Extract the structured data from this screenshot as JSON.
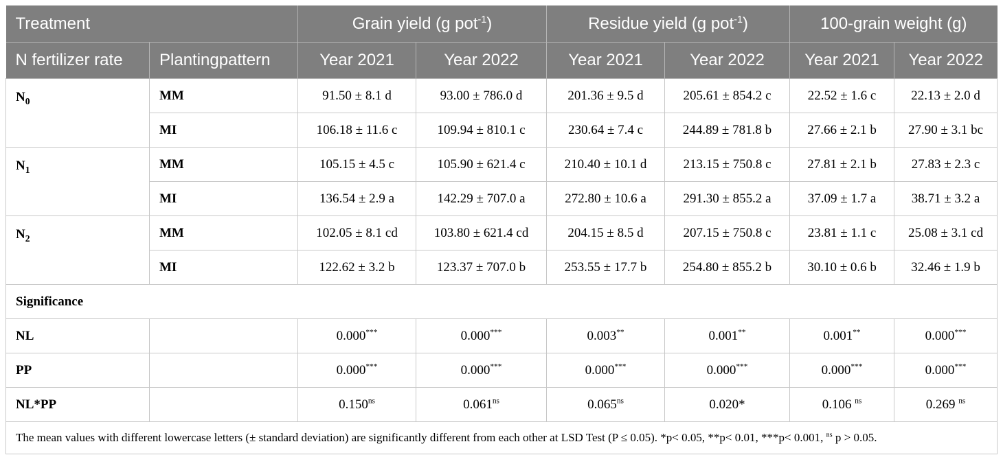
{
  "header": {
    "treatment": "Treatment",
    "grain_yield": "Grain yield (g pot",
    "grain_yield_sup": "-1",
    "grain_yield_close": ")",
    "residue_yield": "Residue yield (g pot",
    "residue_yield_sup": "-1",
    "residue_yield_close": ")",
    "grain_weight": "100-grain weight (g)",
    "n_rate": "N fertilizer rate",
    "planting": "Plantingpattern",
    "years": [
      "Year 2021",
      "Year 2022",
      "Year 2021",
      "Year 2022",
      "Year 2021",
      "Year 2022"
    ]
  },
  "groups": [
    {
      "n_label": "N",
      "n_sub": "0",
      "rows": [
        {
          "pattern": "MM",
          "values": [
            "91.50 ± 8.1 d",
            "93.00 ± 786.0 d",
            "201.36 ± 9.5 d",
            "205.61 ± 854.2 c",
            "22.52 ± 1.6 c",
            "22.13 ± 2.0 d"
          ]
        },
        {
          "pattern": "MI",
          "values": [
            "106.18 ± 11.6 c",
            "109.94 ± 810.1 c",
            "230.64 ± 7.4 c",
            "244.89 ± 781.8 b",
            "27.66 ± 2.1 b",
            "27.90 ± 3.1 bc"
          ]
        }
      ]
    },
    {
      "n_label": "N",
      "n_sub": "1",
      "rows": [
        {
          "pattern": "MM",
          "values": [
            "105.15 ± 4.5 c",
            "105.90 ± 621.4 c",
            "210.40 ± 10.1 d",
            "213.15 ± 750.8 c",
            "27.81 ± 2.1 b",
            "27.83 ± 2.3 c"
          ]
        },
        {
          "pattern": "MI",
          "values": [
            "136.54 ± 2.9 a",
            "142.29 ± 707.0 a",
            "272.80 ± 10.6 a",
            "291.30 ± 855.2 a",
            "37.09 ± 1.7 a",
            "38.71 ± 3.2 a"
          ]
        }
      ]
    },
    {
      "n_label": "N",
      "n_sub": "2",
      "rows": [
        {
          "pattern": "MM",
          "values": [
            "102.05 ± 8.1 cd",
            "103.80 ± 621.4 cd",
            "204.15 ± 8.5 d",
            "207.15 ± 750.8 c",
            "23.81 ± 1.1 c",
            "25.08 ± 3.1 cd"
          ]
        },
        {
          "pattern": "MI",
          "values": [
            "122.62 ± 3.2 b",
            "123.37 ± 707.0 b",
            "253.55 ± 17.7 b",
            "254.80 ± 855.2 b",
            "30.10 ± 0.6 b",
            "32.46 ± 1.9 b"
          ]
        }
      ]
    }
  ],
  "significance": {
    "title": "Significance",
    "rows": [
      {
        "label": "NL",
        "values": [
          [
            "0.000",
            "***"
          ],
          [
            "0.000",
            "***"
          ],
          [
            "0.003",
            "**"
          ],
          [
            "0.001",
            "**"
          ],
          [
            "0.001",
            "**"
          ],
          [
            "0.000",
            "***"
          ]
        ]
      },
      {
        "label": "PP",
        "values": [
          [
            "0.000",
            "***"
          ],
          [
            "0.000",
            "***"
          ],
          [
            "0.000",
            "***"
          ],
          [
            "0.000",
            "***"
          ],
          [
            "0.000",
            "***"
          ],
          [
            "0.000",
            "***"
          ]
        ]
      },
      {
        "label": "NL*PP",
        "values": [
          [
            "0.150",
            ""
          ],
          [
            "0.061",
            ""
          ],
          [
            "0.065",
            ""
          ],
          [
            "0.020",
            "*"
          ],
          [
            "0.106 ",
            ""
          ],
          [
            "0.269 ",
            ""
          ]
        ],
        "sups": [
          "ns",
          "ns",
          "ns",
          "",
          "ns",
          "ns"
        ]
      }
    ]
  },
  "note": {
    "text": "The mean values with different lowercase letters (± standard deviation) are significantly different from each other at LSD Test (P ≤ 0.05). *p< 0.05, **p< 0.01, ***p< 0.001, ",
    "sup": "ns",
    "tail": " p > 0.05."
  }
}
